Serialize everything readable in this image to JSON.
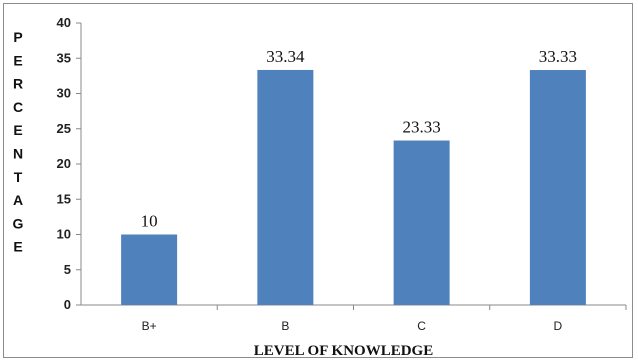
{
  "chart_data": {
    "type": "bar",
    "categories": [
      "B+",
      "B",
      "C",
      "D"
    ],
    "values": [
      10,
      33.34,
      23.33,
      33.33
    ],
    "data_labels": [
      "10",
      "33.34",
      "23.33",
      "33.33"
    ],
    "title": "",
    "xlabel": "LEVEL OF KNOWLEDGE",
    "ylabel": "PERCENTAGE",
    "ylim": [
      0,
      40
    ],
    "yticks": [
      0,
      5,
      10,
      15,
      20,
      25,
      30,
      35,
      40
    ],
    "grid": false,
    "legend": "none",
    "bar_color": "#4f81bd"
  }
}
